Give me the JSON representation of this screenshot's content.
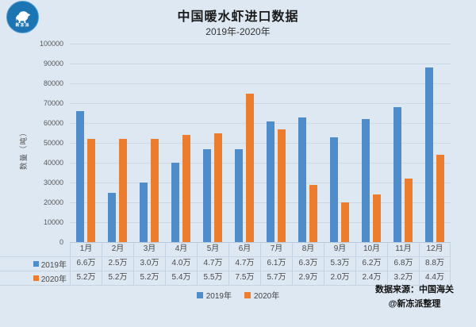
{
  "page": {
    "title": "中国暖水虾进口数据",
    "subtitle": "2019年-2020年",
    "logo_text": "新冻派",
    "source_line1": "数据来源：中国海关",
    "source_line2": "@新冻派整理"
  },
  "colors": {
    "background": "#dde8f3",
    "series_2019": "#4f8dca",
    "series_2020": "#ec7c2e",
    "gridline": "#ccd8e5",
    "table_border": "#c6d3e2",
    "logo_blue": "#1c74b3"
  },
  "chart_data": {
    "type": "bar",
    "title": "中国暖水虾进口数据",
    "subtitle": "2019年-2020年",
    "xlabel": "",
    "ylabel": "数量（吨）",
    "ylim": [
      0,
      100000
    ],
    "ytick_step": 10000,
    "yticks": [
      "0",
      "10000",
      "20000",
      "30000",
      "40000",
      "50000",
      "60000",
      "70000",
      "80000",
      "90000",
      "100000"
    ],
    "grid": true,
    "legend_position": "bottom",
    "data_table": true,
    "categories": [
      "1月",
      "2月",
      "3月",
      "4月",
      "5月",
      "6月",
      "7月",
      "8月",
      "9月",
      "10月",
      "11月",
      "12月"
    ],
    "series": [
      {
        "name": "2019年",
        "color": "#4f8dca",
        "values": [
          66000,
          25000,
          30000,
          40000,
          47000,
          47000,
          61000,
          63000,
          53000,
          62000,
          68000,
          88000
        ],
        "labels": [
          "6.6万",
          "2.5万",
          "3.0万",
          "4.0万",
          "4.7万",
          "4.7万",
          "6.1万",
          "6.3万",
          "5.3万",
          "6.2万",
          "6.8万",
          "8.8万"
        ]
      },
      {
        "name": "2020年",
        "color": "#ec7c2e",
        "values": [
          52000,
          52000,
          52000,
          54000,
          55000,
          75000,
          57000,
          29000,
          20000,
          24000,
          32000,
          44000
        ],
        "labels": [
          "5.2万",
          "5.2万",
          "5.2万",
          "5.4万",
          "5.5万",
          "7.5万",
          "5.7万",
          "2.9万",
          "2.0万",
          "2.4万",
          "3.2万",
          "4.4万"
        ]
      }
    ]
  },
  "legend": {
    "items": [
      {
        "label": "2019年",
        "color": "#4f8dca"
      },
      {
        "label": "2020年",
        "color": "#ec7c2e"
      }
    ]
  }
}
